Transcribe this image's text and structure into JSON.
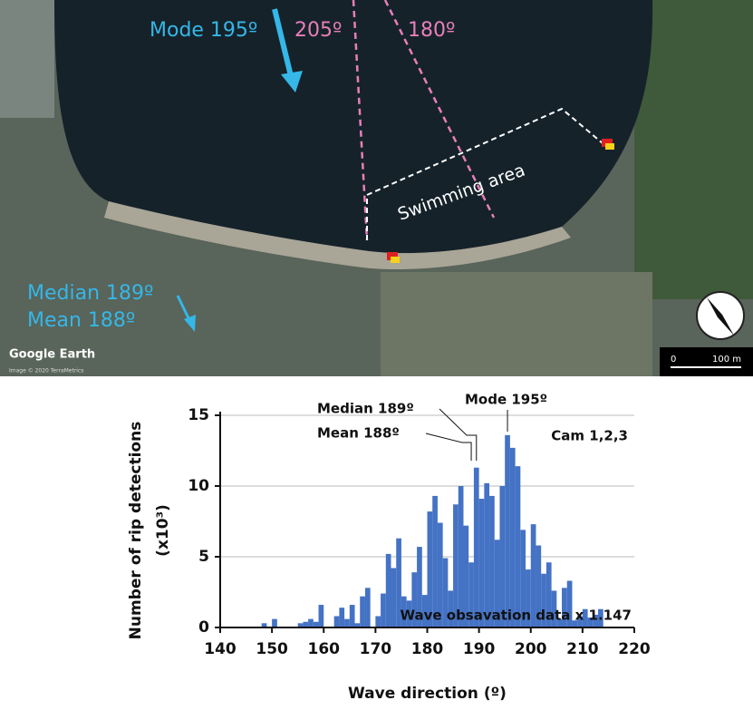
{
  "map": {
    "mode_label": "Mode 195º",
    "line_205": "205º",
    "line_180": "180º",
    "swimming_area": "Swimming area",
    "median_label": "Median 189º",
    "mean_label": "Mean 188º",
    "credit": "Google Earth",
    "copyright": "Image © 2020 TerraMetrics",
    "scale_start": "0",
    "scale_end": "100 m"
  },
  "chart_data": {
    "type": "histogram",
    "ylabel": [
      "Number of rip detections",
      "(x10³)"
    ],
    "xlabel": "Wave direction (º)",
    "bins": [
      148,
      149,
      150,
      151,
      152,
      153,
      154,
      155,
      156,
      157,
      158,
      159,
      160,
      161,
      162,
      163,
      164,
      165,
      166,
      167,
      168,
      169,
      170,
      171,
      172,
      173,
      174,
      175,
      176,
      177,
      178,
      179,
      180,
      181,
      182,
      183,
      184,
      185,
      186,
      187,
      188,
      189,
      190,
      191,
      192,
      193,
      194,
      195,
      196,
      197,
      198,
      199,
      200,
      201,
      202,
      203,
      204,
      205,
      206,
      207,
      208,
      209,
      210,
      211,
      212,
      213,
      214
    ],
    "values": [
      0.3,
      0,
      0.6,
      0,
      0,
      0,
      0,
      0.3,
      0.4,
      0.6,
      0.4,
      1.6,
      0,
      0,
      0.8,
      1.4,
      0.6,
      1.6,
      0.3,
      2.2,
      2.8,
      0,
      0.8,
      2.4,
      5.2,
      4.2,
      6.3,
      2.2,
      1.9,
      3.9,
      5.7,
      2.3,
      8.2,
      9.3,
      7.4,
      4.9,
      2.6,
      8.7,
      10,
      7.2,
      4.6,
      11.3,
      9.1,
      10.2,
      9.3,
      6.2,
      10,
      13.6,
      12.7,
      11.4,
      6.9,
      4.1,
      7.3,
      5.8,
      3.8,
      4.6,
      2.6,
      0.6,
      2.8,
      3.3,
      0.5,
      0.8,
      1.3,
      0.7,
      0.9,
      1.3
    ],
    "color": "#4472c4",
    "xlim": [
      140,
      220
    ],
    "xticks": [
      140,
      150,
      160,
      170,
      180,
      190,
      200,
      210,
      220
    ],
    "ylim": [
      0,
      15
    ],
    "yticks": [
      0,
      5,
      10,
      15
    ],
    "grid": true,
    "annotations": [
      {
        "text": "Median 189º",
        "x": 189
      },
      {
        "text": "Mean 188º",
        "x": 188
      },
      {
        "text": "Mode 195º",
        "x": 195
      }
    ],
    "label": "Cam 1,2,3",
    "note": "Wave obsavation data  x 1.147"
  }
}
